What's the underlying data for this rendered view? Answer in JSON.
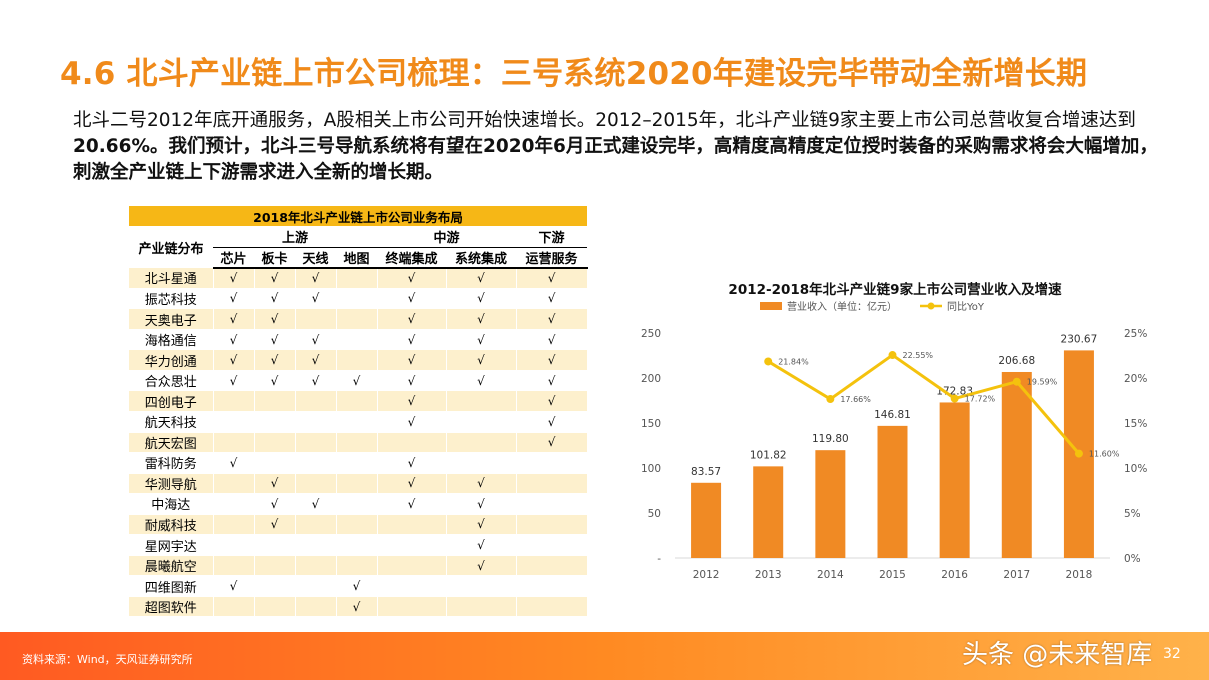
{
  "header": {
    "title": "4.6 北斗产业链上市公司梳理：三号系统2020年建设完毕带动全新增长期"
  },
  "intro": {
    "part1": "北斗二号2012年底开通服务，A股相关上市公司开始快速增长。2012–2015年，北斗产业链9家主要上市公司总营收复合增速达到",
    "part2": "20.66%。我们预计，北斗三号导航系统将有望在2020年6月正式建设完毕，高精度高精度定位授时装备的采购需求将会大幅增加，刺激全产业链上下游需求进入全新的增长期。"
  },
  "table": {
    "caption": "2018年北斗产业链上市公司业务布局",
    "row_header": "产业链分布",
    "groups": [
      "上游",
      "中游",
      "下游"
    ],
    "columns": [
      "芯片",
      "板卡",
      "天线",
      "地图",
      "终端集成",
      "系统集成",
      "运营服务"
    ],
    "check": "√",
    "rows": [
      {
        "name": "北斗星通",
        "cells": [
          "√",
          "√",
          "√",
          "",
          "√",
          "√",
          "√"
        ]
      },
      {
        "name": "振芯科技",
        "cells": [
          "√",
          "√",
          "√",
          "",
          "√",
          "√",
          "√"
        ]
      },
      {
        "name": "天奥电子",
        "cells": [
          "√",
          "√",
          "",
          "",
          "√",
          "√",
          "√"
        ]
      },
      {
        "name": "海格通信",
        "cells": [
          "√",
          "√",
          "√",
          "",
          "√",
          "√",
          "√"
        ]
      },
      {
        "name": "华力创通",
        "cells": [
          "√",
          "√",
          "√",
          "",
          "√",
          "√",
          "√"
        ]
      },
      {
        "name": "合众思壮",
        "cells": [
          "√",
          "√",
          "√",
          "√",
          "√",
          "√",
          "√"
        ]
      },
      {
        "name": "四创电子",
        "cells": [
          "",
          "",
          "",
          "",
          "√",
          "",
          "√"
        ]
      },
      {
        "name": "航天科技",
        "cells": [
          "",
          "",
          "",
          "",
          "√",
          "",
          "√"
        ]
      },
      {
        "name": "航天宏图",
        "cells": [
          "",
          "",
          "",
          "",
          "",
          "",
          "√"
        ]
      },
      {
        "name": "雷科防务",
        "cells": [
          "√",
          "",
          "",
          "",
          "√",
          "",
          ""
        ]
      },
      {
        "name": "华测导航",
        "cells": [
          "",
          "√",
          "",
          "",
          "√",
          "√",
          ""
        ]
      },
      {
        "name": "中海达",
        "cells": [
          "",
          "√",
          "√",
          "",
          "√",
          "√",
          ""
        ]
      },
      {
        "name": "耐威科技",
        "cells": [
          "",
          "√",
          "",
          "",
          "",
          "√",
          ""
        ]
      },
      {
        "name": "星网宇达",
        "cells": [
          "",
          "",
          "",
          "",
          "",
          "√",
          ""
        ]
      },
      {
        "name": "晨曦航空",
        "cells": [
          "",
          "",
          "",
          "",
          "",
          "√",
          ""
        ]
      },
      {
        "name": "四维图新",
        "cells": [
          "√",
          "",
          "",
          "√",
          "",
          "",
          ""
        ]
      },
      {
        "name": "超图软件",
        "cells": [
          "",
          "",
          "",
          "√",
          "",
          "",
          ""
        ]
      }
    ]
  },
  "chart_data": {
    "type": "bar",
    "title": "2012-2018年北斗产业链9家上市公司营业收入及增速",
    "categories": [
      "2012",
      "2013",
      "2014",
      "2015",
      "2016",
      "2017",
      "2018"
    ],
    "series": [
      {
        "name": "营业收入（单位：亿元）",
        "type": "bar",
        "axis": "left",
        "color": "#f08a24",
        "values": [
          83.57,
          101.82,
          119.8,
          146.81,
          172.83,
          206.68,
          230.67
        ],
        "labels": [
          "83.57",
          "101.82",
          "119.80",
          "146.81",
          "172.83",
          "206.68",
          "230.67"
        ]
      },
      {
        "name": "同比YoY",
        "type": "line",
        "axis": "right",
        "color": "#f4c20d",
        "values": [
          null,
          21.84,
          17.66,
          22.55,
          17.72,
          19.59,
          11.6
        ],
        "labels": [
          "",
          "21.84%",
          "17.66%",
          "22.55%",
          "17.72%",
          "19.59%",
          "11.60%"
        ]
      }
    ],
    "y_left": {
      "range": [
        0,
        250
      ],
      "ticks": [
        "-",
        "50",
        "100",
        "150",
        "200",
        "250"
      ]
    },
    "y_right": {
      "range": [
        0,
        25
      ],
      "ticks": [
        "0%",
        "5%",
        "10%",
        "15%",
        "20%",
        "25%"
      ]
    },
    "legend_position": "top",
    "grid": false
  },
  "footer": {
    "source": "资料来源：Wind，天风证券研究所",
    "watermark": "头条 @未来智库",
    "page": "32"
  }
}
